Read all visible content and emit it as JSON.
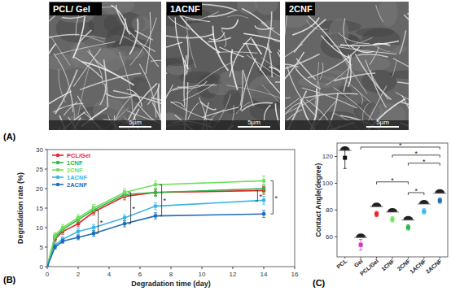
{
  "panel_labels": [
    "(A)",
    "(B)",
    "(C)"
  ],
  "sem_images": [
    {
      "label": "PCL/ Gel",
      "scale_bar": "5µm"
    },
    {
      "label": "1ACNF",
      "scale_bar": "5µm"
    },
    {
      "label": "2CNF",
      "scale_bar": "5µm"
    }
  ],
  "chart_data": [
    {
      "type": "line",
      "x_label": "Degradation time (day)",
      "y_label": "Degradation rate (%)",
      "x": [
        0,
        0.5,
        1,
        2,
        3,
        5,
        7,
        14
      ],
      "xlim": [
        0,
        16
      ],
      "xticks": [
        0,
        2,
        4,
        6,
        8,
        10,
        12,
        14,
        16
      ],
      "ylim": [
        0,
        30
      ],
      "yticks": [
        0,
        5,
        10,
        15,
        20,
        25,
        30
      ],
      "legend": "top-left",
      "marker": "circle",
      "series": [
        {
          "name": "PCL/Gel",
          "color": "#e8242a",
          "values": [
            0,
            7,
            9,
            11,
            14,
            18,
            19,
            19.5
          ],
          "errors": [
            0,
            0.6,
            0.7,
            0.8,
            0.8,
            0.9,
            0.8,
            1.0
          ]
        },
        {
          "name": "1CNF",
          "color": "#2fb34a",
          "values": [
            0,
            7.5,
            9.5,
            12,
            14.5,
            18.5,
            19,
            20
          ],
          "errors": [
            0,
            0.6,
            0.7,
            0.8,
            0.9,
            0.9,
            1.0,
            1.0
          ]
        },
        {
          "name": "2CNF",
          "color": "#6fe05a",
          "values": [
            0,
            8,
            10,
            12.5,
            15,
            19,
            21,
            22
          ],
          "errors": [
            0,
            0.7,
            0.8,
            0.8,
            0.9,
            1.0,
            1.0,
            1.2
          ]
        },
        {
          "name": "1ACNF",
          "color": "#3cb4e6",
          "values": [
            0,
            5.5,
            7,
            9,
            10,
            12.5,
            15.5,
            17
          ],
          "errors": [
            0,
            0.5,
            0.6,
            0.7,
            0.8,
            0.8,
            0.9,
            1.0
          ]
        },
        {
          "name": "2ACNF",
          "color": "#1f6db8",
          "values": [
            0,
            5,
            6.5,
            7.5,
            8.5,
            11,
            13,
            13.5
          ],
          "errors": [
            0,
            0.5,
            0.5,
            0.6,
            0.7,
            0.8,
            0.8,
            0.9
          ]
        }
      ],
      "annotations": [
        {
          "x": 3.3,
          "y1": 14.5,
          "y2": 8.5,
          "label": "*"
        },
        {
          "x": 5.4,
          "y1": 19,
          "y2": 11,
          "label": "*"
        },
        {
          "x": 7.4,
          "y1": 21,
          "y2": 13,
          "label": "*"
        },
        {
          "x": 13.6,
          "y1": 19.5,
          "y2": 16.8,
          "label": "*"
        },
        {
          "x": 14.6,
          "y1": 22,
          "y2": 13.5,
          "label": "*"
        }
      ]
    },
    {
      "type": "scatter",
      "y_label": "Contact Angle(degree)",
      "categories": [
        "PCL",
        "Gel",
        "PCL/Gel",
        "1CNF",
        "2CNF",
        "1ACNF",
        "2ACNF"
      ],
      "values": [
        119,
        54,
        77,
        73,
        67,
        79,
        87
      ],
      "errors": [
        8,
        4,
        2,
        2,
        2,
        2,
        2
      ],
      "colors": [
        "#111111",
        "#d633c8",
        "#e8242a",
        "#6fe05a",
        "#2fb34a",
        "#3cb4e6",
        "#1f6db8"
      ],
      "marker": "square",
      "ylim": [
        45,
        130
      ],
      "yticks": [
        60,
        80,
        100,
        120
      ],
      "annotations": [
        {
          "from": 1,
          "to": 6,
          "y": 127,
          "label": "*"
        },
        {
          "from": 3,
          "to": 6,
          "y": 121,
          "label": "*"
        },
        {
          "from": 4,
          "to": 6,
          "y": 115,
          "label": "*"
        },
        {
          "from": 2,
          "to": 4,
          "y": 101,
          "label": "*"
        },
        {
          "from": 4,
          "to": 5,
          "y": 93,
          "label": "*"
        }
      ]
    }
  ]
}
